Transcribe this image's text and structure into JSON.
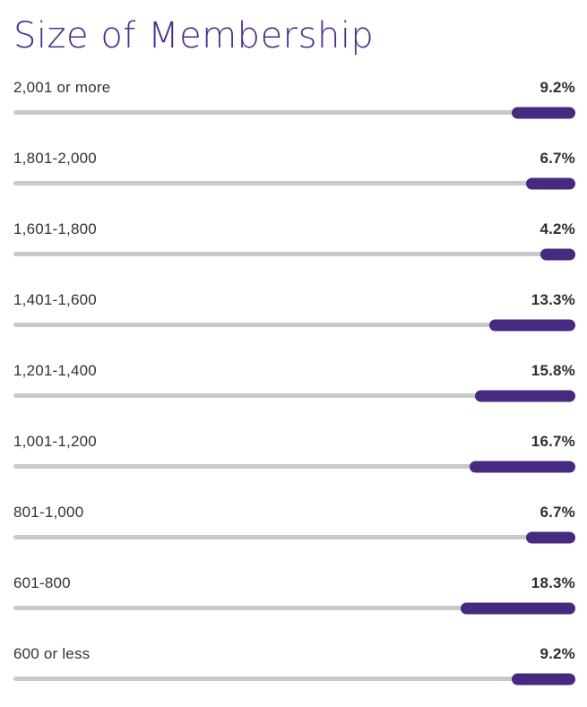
{
  "chart_data": {
    "type": "bar",
    "orientation": "horizontal",
    "title": "Size of Membership",
    "categories": [
      "2,001 or more",
      "1,801-2,000",
      "1,601-1,800",
      "1,401-1,600",
      "1,201-1,400",
      "1,001-1,200",
      "801-1,000",
      "601-800",
      "600 or less"
    ],
    "values": [
      9.2,
      6.7,
      4.2,
      13.3,
      15.8,
      16.7,
      6.7,
      18.3,
      9.2
    ],
    "value_labels": [
      "9.2%",
      "6.7%",
      "4.2%",
      "13.3%",
      "15.8%",
      "16.7%",
      "6.7%",
      "18.3%",
      "9.2%"
    ],
    "xlim": [
      0,
      100
    ],
    "grid": false,
    "legend": false,
    "colors": {
      "bar": "#452a7f",
      "track": "#c9c9cd",
      "title": "#4b2e87",
      "label": "#333333"
    }
  }
}
